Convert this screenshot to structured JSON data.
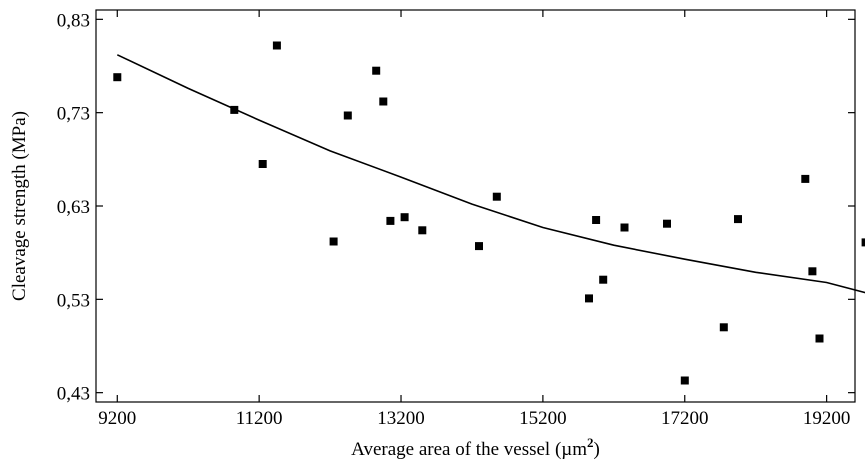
{
  "chart_data": {
    "type": "scatter",
    "xlabel": "Average area of the vessel (µm",
    "xlabel_sup": "2",
    "xlabel_close": ")",
    "ylabel": "Cleavage strength (MPa)",
    "xlim": [
      8900,
      19600
    ],
    "ylim": [
      0.42,
      0.84
    ],
    "xticks": [
      9200,
      11200,
      13200,
      15200,
      17200,
      19200
    ],
    "xtick_labels": [
      "9200",
      "11200",
      "13200",
      "15200",
      "17200",
      "19200"
    ],
    "yticks": [
      0.43,
      0.53,
      0.63,
      0.73,
      0.83
    ],
    "ytick_labels": [
      "0,43",
      "0,53",
      "0,63",
      "0,73",
      "0,83"
    ],
    "points": [
      {
        "x": 9200,
        "y": 0.768
      },
      {
        "x": 10850,
        "y": 0.733
      },
      {
        "x": 11250,
        "y": 0.675
      },
      {
        "x": 11450,
        "y": 0.802
      },
      {
        "x": 12250,
        "y": 0.592
      },
      {
        "x": 12450,
        "y": 0.727
      },
      {
        "x": 12850,
        "y": 0.775
      },
      {
        "x": 12950,
        "y": 0.742
      },
      {
        "x": 13050,
        "y": 0.614
      },
      {
        "x": 13250,
        "y": 0.618
      },
      {
        "x": 13500,
        "y": 0.604
      },
      {
        "x": 14300,
        "y": 0.587
      },
      {
        "x": 14550,
        "y": 0.64
      },
      {
        "x": 15850,
        "y": 0.531
      },
      {
        "x": 15950,
        "y": 0.615
      },
      {
        "x": 16050,
        "y": 0.551
      },
      {
        "x": 16350,
        "y": 0.607
      },
      {
        "x": 16950,
        "y": 0.611
      },
      {
        "x": 17200,
        "y": 0.443
      },
      {
        "x": 17750,
        "y": 0.5
      },
      {
        "x": 17950,
        "y": 0.616
      },
      {
        "x": 18900,
        "y": 0.659
      },
      {
        "x": 19000,
        "y": 0.56
      },
      {
        "x": 19100,
        "y": 0.488
      },
      {
        "x": 19750,
        "y": 0.591
      }
    ],
    "trend": {
      "x": [
        9200,
        10200,
        11200,
        12200,
        13200,
        14200,
        15200,
        16200,
        17200,
        18200,
        19200,
        19800
      ],
      "y": [
        0.792,
        0.756,
        0.722,
        0.689,
        0.661,
        0.632,
        0.607,
        0.588,
        0.573,
        0.559,
        0.548,
        0.536
      ]
    },
    "colors": {
      "points": "#000000",
      "line": "#000000",
      "axes": "#000000"
    },
    "grid": false,
    "legend": "none"
  }
}
